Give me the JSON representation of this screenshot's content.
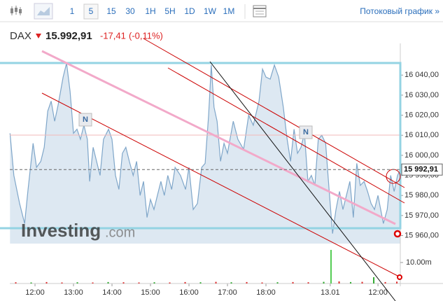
{
  "toolbar": {
    "intervals": [
      "1",
      "5",
      "15",
      "30",
      "1H",
      "5H",
      "1D",
      "1W",
      "1M"
    ],
    "link": "Потоковый график »"
  },
  "header": {
    "symbol": "DAX",
    "price": "15.992,91",
    "change": "-17,41",
    "change_pct": "(-0,11%)"
  },
  "watermark": [
    "Investing",
    ".com"
  ],
  "markers": [
    "N",
    "N"
  ],
  "chart_data": [
    {
      "type": "area",
      "color": "#7fa6c9",
      "fill": "#dde8f2",
      "x": [
        11.35,
        11.45,
        11.6,
        11.73,
        11.82,
        11.95,
        12.04,
        12.15,
        12.24,
        12.33,
        12.42,
        12.51,
        12.6,
        12.73,
        12.82,
        12.91,
        13.0,
        13.09,
        13.18,
        13.27,
        13.36,
        13.42,
        13.51,
        13.6,
        13.69,
        13.78,
        13.91,
        14.0,
        14.09,
        14.18,
        14.27,
        14.36,
        14.45,
        14.55,
        14.64,
        14.73,
        14.82,
        14.91,
        15.0,
        15.09,
        15.18,
        15.27,
        15.36,
        15.45,
        15.55,
        15.64,
        15.78,
        15.91,
        16.0,
        16.11,
        16.22,
        16.33,
        16.42,
        16.51,
        16.58,
        16.65,
        16.73,
        16.82,
        16.91,
        17.0,
        17.15,
        17.27,
        17.42,
        17.55,
        17.67,
        17.82,
        17.91,
        18.0,
        18.11,
        18.22,
        18.33,
        18.45,
        18.55,
        18.64,
        18.73,
        18.82,
        18.91,
        19.0,
        19.09,
        19.18,
        19.27,
        19.36,
        19.45,
        19.55,
        19.64,
        19.73,
        19.82,
        19.91,
        20.0,
        20.09,
        20.18,
        20.27,
        20.36,
        20.45,
        20.55,
        20.64,
        20.73,
        20.82,
        20.91,
        21.05,
        21.15,
        21.24,
        21.33,
        21.42,
        21.49
      ],
      "values": [
        16011,
        15990,
        15976,
        15966,
        15983,
        16006,
        15994,
        15997,
        16004,
        16022,
        16027,
        16017,
        16025,
        16039,
        16046,
        16032,
        16011,
        16013,
        16008,
        16015,
        16008,
        15987,
        16004,
        15997,
        15990,
        16008,
        16013,
        16008,
        15990,
        15983,
        16001,
        16004,
        15997,
        15990,
        15997,
        15980,
        15987,
        15969,
        15978,
        15973,
        15980,
        15987,
        15980,
        15990,
        15983,
        15994,
        15990,
        15983,
        15994,
        15973,
        15976,
        15994,
        15996,
        16020,
        16045,
        16024,
        16017,
        15997,
        16006,
        16001,
        16017,
        16008,
        16003,
        16020,
        16015,
        16027,
        16043,
        16039,
        16038,
        16045,
        16039,
        16024,
        16008,
        15997,
        16013,
        16001,
        16004,
        16011,
        15987,
        15990,
        15985,
        16008,
        16010,
        16006,
        15983,
        15961,
        15973,
        15982,
        15973,
        15980,
        15987,
        15969,
        15996,
        15985,
        15987,
        15982,
        15976,
        15973,
        15980,
        15966,
        15973,
        15990,
        15982,
        15990,
        15993
      ],
      "xlim": [
        11.345,
        21.49
      ],
      "ylim": [
        15956,
        16053
      ],
      "xticks": [
        {
          "value": 12,
          "label": "12:00"
        },
        {
          "value": 13,
          "label": "13:00"
        },
        {
          "value": 14,
          "label": "14:00"
        },
        {
          "value": 15,
          "label": "15:00"
        },
        {
          "value": 16,
          "label": "16:00"
        },
        {
          "value": 17,
          "label": "17:00"
        },
        {
          "value": 18,
          "label": "18:00"
        },
        {
          "value": 19.67,
          "label": "13.01"
        },
        {
          "value": 20.91,
          "label": "12:00"
        }
      ],
      "yticks": [
        {
          "value": 15960,
          "label": "15 960,00"
        },
        {
          "value": 15970,
          "label": "15 970,00"
        },
        {
          "value": 15980,
          "label": "15 980,00"
        },
        {
          "value": 15990,
          "label": "15 990,00"
        },
        {
          "value": 16000,
          "label": "16 000,00"
        },
        {
          "value": 16010,
          "label": "16 010,00"
        },
        {
          "value": 16020,
          "label": "16 020,00"
        },
        {
          "value": 16030,
          "label": "16 030,00"
        },
        {
          "value": 16040,
          "label": "16 040,00"
        }
      ],
      "last_value": {
        "value": 15992.91,
        "label": "15 992,91"
      }
    },
    {
      "type": "bar",
      "x": [
        11.5,
        11.9,
        12.3,
        12.7,
        13.1,
        13.5,
        13.9,
        14.3,
        14.7,
        15.1,
        15.5,
        15.9,
        16.3,
        16.7,
        17.1,
        17.5,
        17.9,
        18.3,
        18.7,
        19.1,
        19.5,
        19.69,
        19.9,
        20.2,
        20.5,
        20.8,
        21.1,
        21.4
      ],
      "values": [
        600000,
        500000,
        700000,
        500000,
        600000,
        500000,
        700000,
        600000,
        500000,
        600000,
        500000,
        700000,
        600000,
        800000,
        600000,
        700000,
        500000,
        600000,
        700000,
        600000,
        800000,
        16000000,
        1000000,
        700000,
        800000,
        3000000,
        700000,
        900000
      ],
      "colors": [
        "#d33",
        "#3a3",
        "#d33",
        "#d33",
        "#3a3",
        "#d33",
        "#3a3",
        "#d33",
        "#d33",
        "#3a3",
        "#d33",
        "#d33",
        "#3a3",
        "#d33",
        "#3a3",
        "#d33",
        "#d33",
        "#3a3",
        "#d33",
        "#d33",
        "#3a3",
        "#5c5",
        "#d33",
        "#3a3",
        "#d33",
        "#3a3",
        "#d33",
        "#d33"
      ],
      "xlim": [
        11.345,
        21.49
      ],
      "ylim": [
        0,
        16000000
      ],
      "yticks": [
        {
          "value": 10000000,
          "label": "10.00m"
        }
      ]
    }
  ]
}
